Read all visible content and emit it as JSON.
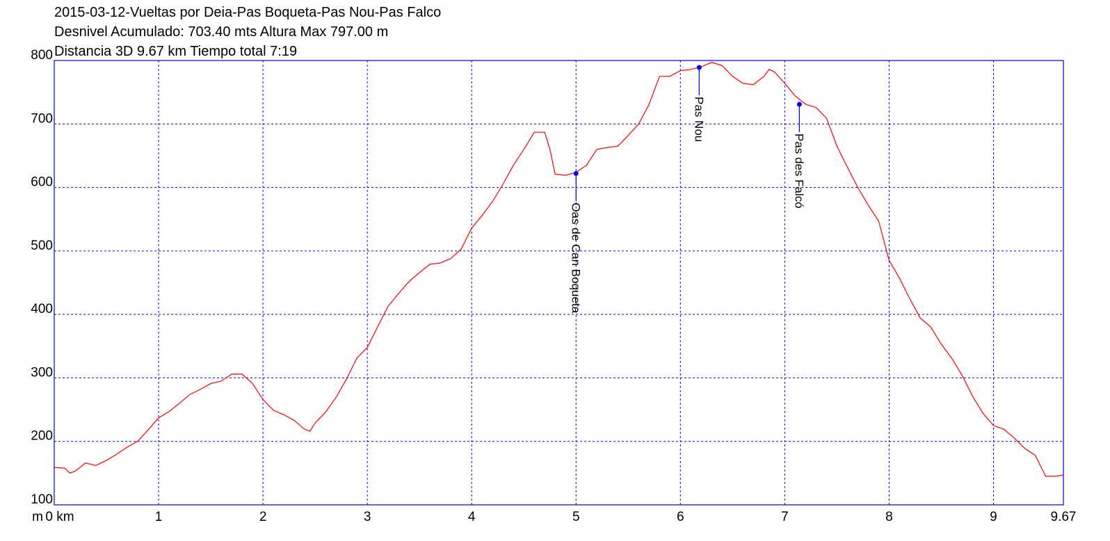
{
  "chart_data": {
    "type": "line",
    "title": "2015-03-12-Vueltas por Deia-Pas Boqueta-Pas Nou-Pas Falco",
    "subtitle": [
      "Desnivel Acumulado: 703.40 mts  Altura Max 797.00 m",
      "Distancia 3D 9.67 km  Tiempo total 7:19"
    ],
    "y_label": "m",
    "color": "#ff0000",
    "grid_color": "#0000ff",
    "marker_color": "#0000ff",
    "grid": true,
    "xlim": [
      0,
      9.67
    ],
    "ylim": [
      100,
      800
    ],
    "xticks": [
      {
        "value": 0,
        "label": "0 km"
      },
      1,
      2,
      3,
      4,
      5,
      6,
      7,
      8,
      9,
      9.67
    ],
    "yticks": [
      100,
      200,
      300,
      400,
      500,
      600,
      700,
      800
    ],
    "x": [
      0,
      0.1,
      0.15,
      0.2,
      0.3,
      0.4,
      0.5,
      0.6,
      0.7,
      0.8,
      0.9,
      1.0,
      1.1,
      1.2,
      1.3,
      1.4,
      1.5,
      1.6,
      1.7,
      1.8,
      1.9,
      2.0,
      2.1,
      2.2,
      2.3,
      2.4,
      2.45,
      2.5,
      2.6,
      2.7,
      2.8,
      2.9,
      3.0,
      3.1,
      3.2,
      3.3,
      3.4,
      3.5,
      3.6,
      3.7,
      3.8,
      3.9,
      4.0,
      4.1,
      4.2,
      4.3,
      4.4,
      4.5,
      4.6,
      4.7,
      4.75,
      4.8,
      4.9,
      5.0,
      5.1,
      5.2,
      5.3,
      5.4,
      5.5,
      5.6,
      5.7,
      5.8,
      5.9,
      6.0,
      6.1,
      6.2,
      6.3,
      6.4,
      6.5,
      6.6,
      6.7,
      6.8,
      6.85,
      6.9,
      7.0,
      7.1,
      7.2,
      7.3,
      7.4,
      7.5,
      7.6,
      7.7,
      7.8,
      7.9,
      8.0,
      8.1,
      8.2,
      8.3,
      8.4,
      8.5,
      8.6,
      8.7,
      8.8,
      8.9,
      9.0,
      9.1,
      9.2,
      9.3,
      9.4,
      9.5,
      9.6,
      9.67
    ],
    "values": [
      159,
      158,
      150,
      153,
      166,
      162,
      170,
      180,
      191,
      200,
      218,
      237,
      247,
      260,
      274,
      282,
      291,
      295,
      306,
      306,
      291,
      266,
      249,
      242,
      233,
      219,
      216,
      229,
      246,
      269,
      298,
      331,
      348,
      381,
      413,
      433,
      452,
      466,
      479,
      481,
      488,
      503,
      536,
      556,
      578,
      605,
      635,
      660,
      687,
      687,
      660,
      621,
      619,
      624,
      635,
      660,
      663,
      665,
      682,
      700,
      731,
      775,
      775,
      784,
      786,
      790,
      797,
      792,
      775,
      764,
      762,
      775,
      786,
      782,
      764,
      744,
      731,
      726,
      709,
      665,
      632,
      600,
      572,
      547,
      485,
      457,
      424,
      394,
      380,
      353,
      331,
      304,
      271,
      244,
      225,
      219,
      205,
      189,
      178,
      145,
      145,
      147
    ],
    "annotations": [
      {
        "x": 5.0,
        "y": 622,
        "label": "Oas de Can Boqueta"
      },
      {
        "x": 6.18,
        "y": 789,
        "label": "Pas Nou"
      },
      {
        "x": 7.14,
        "y": 731,
        "label": "Pas des Falcó"
      }
    ]
  }
}
